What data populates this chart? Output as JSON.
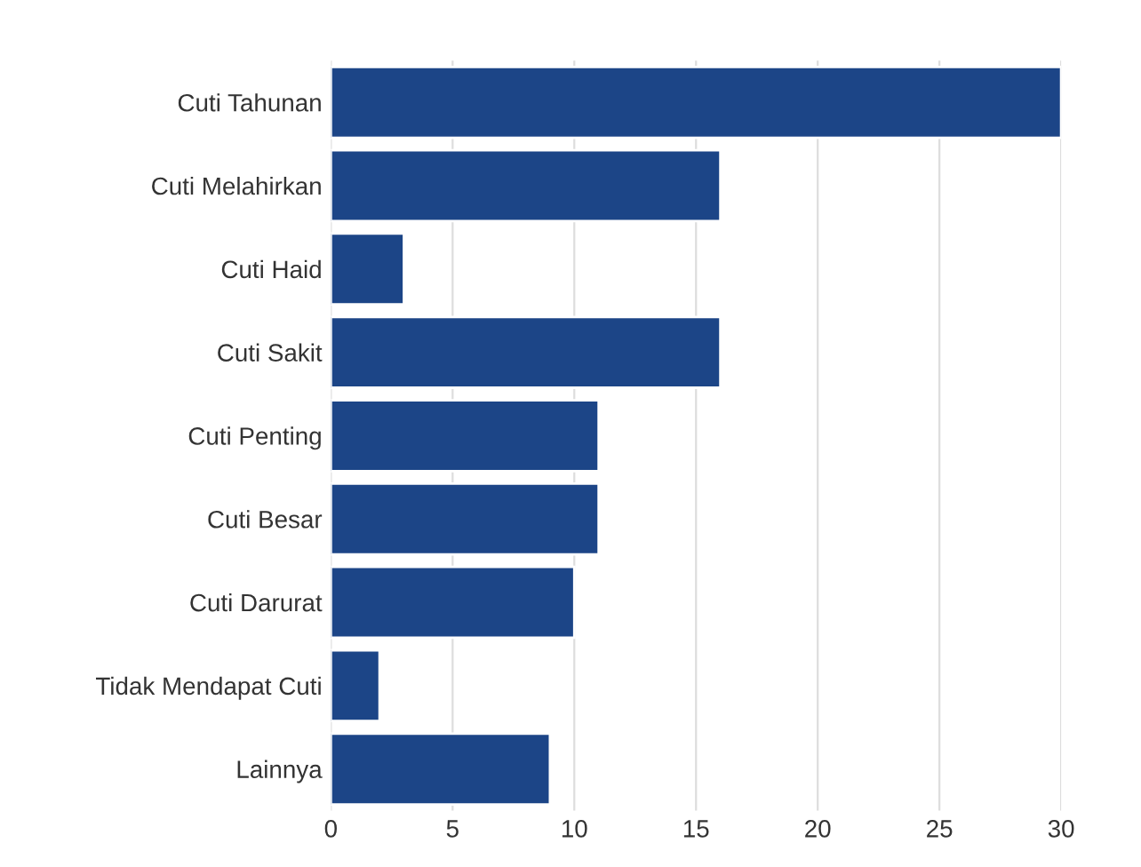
{
  "chart_data": {
    "type": "bar",
    "orientation": "horizontal",
    "categories": [
      "Cuti Tahunan",
      "Cuti Melahirkan",
      "Cuti Haid",
      "Cuti Sakit",
      "Cuti Penting",
      "Cuti Besar",
      "Cuti Darurat",
      "Tidak Mendapat Cuti",
      "Lainnya"
    ],
    "values": [
      30,
      16,
      3,
      16,
      11,
      11,
      10,
      2,
      9
    ],
    "color": "#1c4587",
    "xlim": [
      0,
      30
    ],
    "xticks": [
      0,
      5,
      10,
      15,
      20,
      25,
      30
    ],
    "grid": "x"
  }
}
